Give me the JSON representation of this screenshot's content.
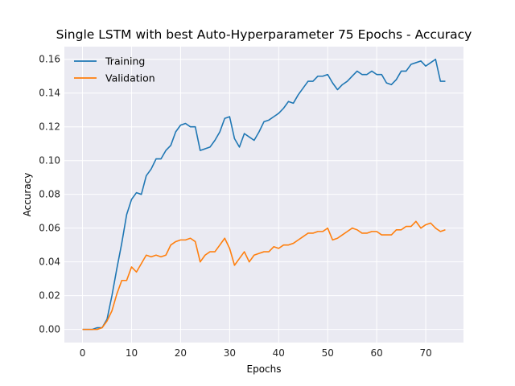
{
  "chart_data": {
    "type": "line",
    "title": "Single LSTM with best Auto-Hyperparameter 75 Epochs - Accuracy",
    "xlabel": "Epochs",
    "ylabel": "Accuracy",
    "xlim": [
      -3.7,
      77.7
    ],
    "ylim": [
      -0.0078,
      0.1675
    ],
    "xticks": [
      0,
      10,
      20,
      30,
      40,
      50,
      60,
      70
    ],
    "xtick_labels": [
      "0",
      "10",
      "20",
      "30",
      "40",
      "50",
      "60",
      "70"
    ],
    "yticks": [
      0.0,
      0.02,
      0.04,
      0.06,
      0.08,
      0.1,
      0.12,
      0.14,
      0.16
    ],
    "ytick_labels": [
      "0.00",
      "0.02",
      "0.04",
      "0.06",
      "0.08",
      "0.10",
      "0.12",
      "0.14",
      "0.16"
    ],
    "grid": true,
    "legend": "top-left",
    "series": [
      {
        "name": "Training",
        "color": "#1f77b4",
        "values": [
          0.0,
          0.0,
          0.0,
          0.001,
          0.001,
          0.006,
          0.02,
          0.036,
          0.051,
          0.068,
          0.077,
          0.081,
          0.08,
          0.091,
          0.095,
          0.101,
          0.101,
          0.106,
          0.109,
          0.117,
          0.121,
          0.122,
          0.12,
          0.12,
          0.106,
          0.107,
          0.108,
          0.112,
          0.117,
          0.125,
          0.126,
          0.113,
          0.108,
          0.116,
          0.114,
          0.112,
          0.117,
          0.123,
          0.124,
          0.126,
          0.128,
          0.131,
          0.135,
          0.134,
          0.139,
          0.143,
          0.147,
          0.147,
          0.15,
          0.15,
          0.151,
          0.146,
          0.142,
          0.145,
          0.147,
          0.15,
          0.153,
          0.151,
          0.151,
          0.153,
          0.151,
          0.151,
          0.146,
          0.145,
          0.148,
          0.153,
          0.153,
          0.157,
          0.158,
          0.159,
          0.156,
          0.158,
          0.16,
          0.147,
          0.147
        ]
      },
      {
        "name": "Validation",
        "color": "#ff7f0e",
        "values": [
          0.0,
          0.0,
          0.0,
          0.0,
          0.001,
          0.005,
          0.011,
          0.021,
          0.029,
          0.029,
          0.037,
          0.034,
          0.039,
          0.044,
          0.043,
          0.044,
          0.043,
          0.044,
          0.05,
          0.052,
          0.053,
          0.053,
          0.054,
          0.052,
          0.04,
          0.044,
          0.046,
          0.046,
          0.05,
          0.054,
          0.048,
          0.038,
          0.042,
          0.046,
          0.04,
          0.044,
          0.045,
          0.046,
          0.046,
          0.049,
          0.048,
          0.05,
          0.05,
          0.051,
          0.053,
          0.055,
          0.057,
          0.057,
          0.058,
          0.058,
          0.06,
          0.053,
          0.054,
          0.056,
          0.058,
          0.06,
          0.059,
          0.057,
          0.057,
          0.058,
          0.058,
          0.056,
          0.056,
          0.056,
          0.059,
          0.059,
          0.061,
          0.061,
          0.064,
          0.06,
          0.062,
          0.063,
          0.06,
          0.058,
          0.059
        ]
      }
    ]
  }
}
